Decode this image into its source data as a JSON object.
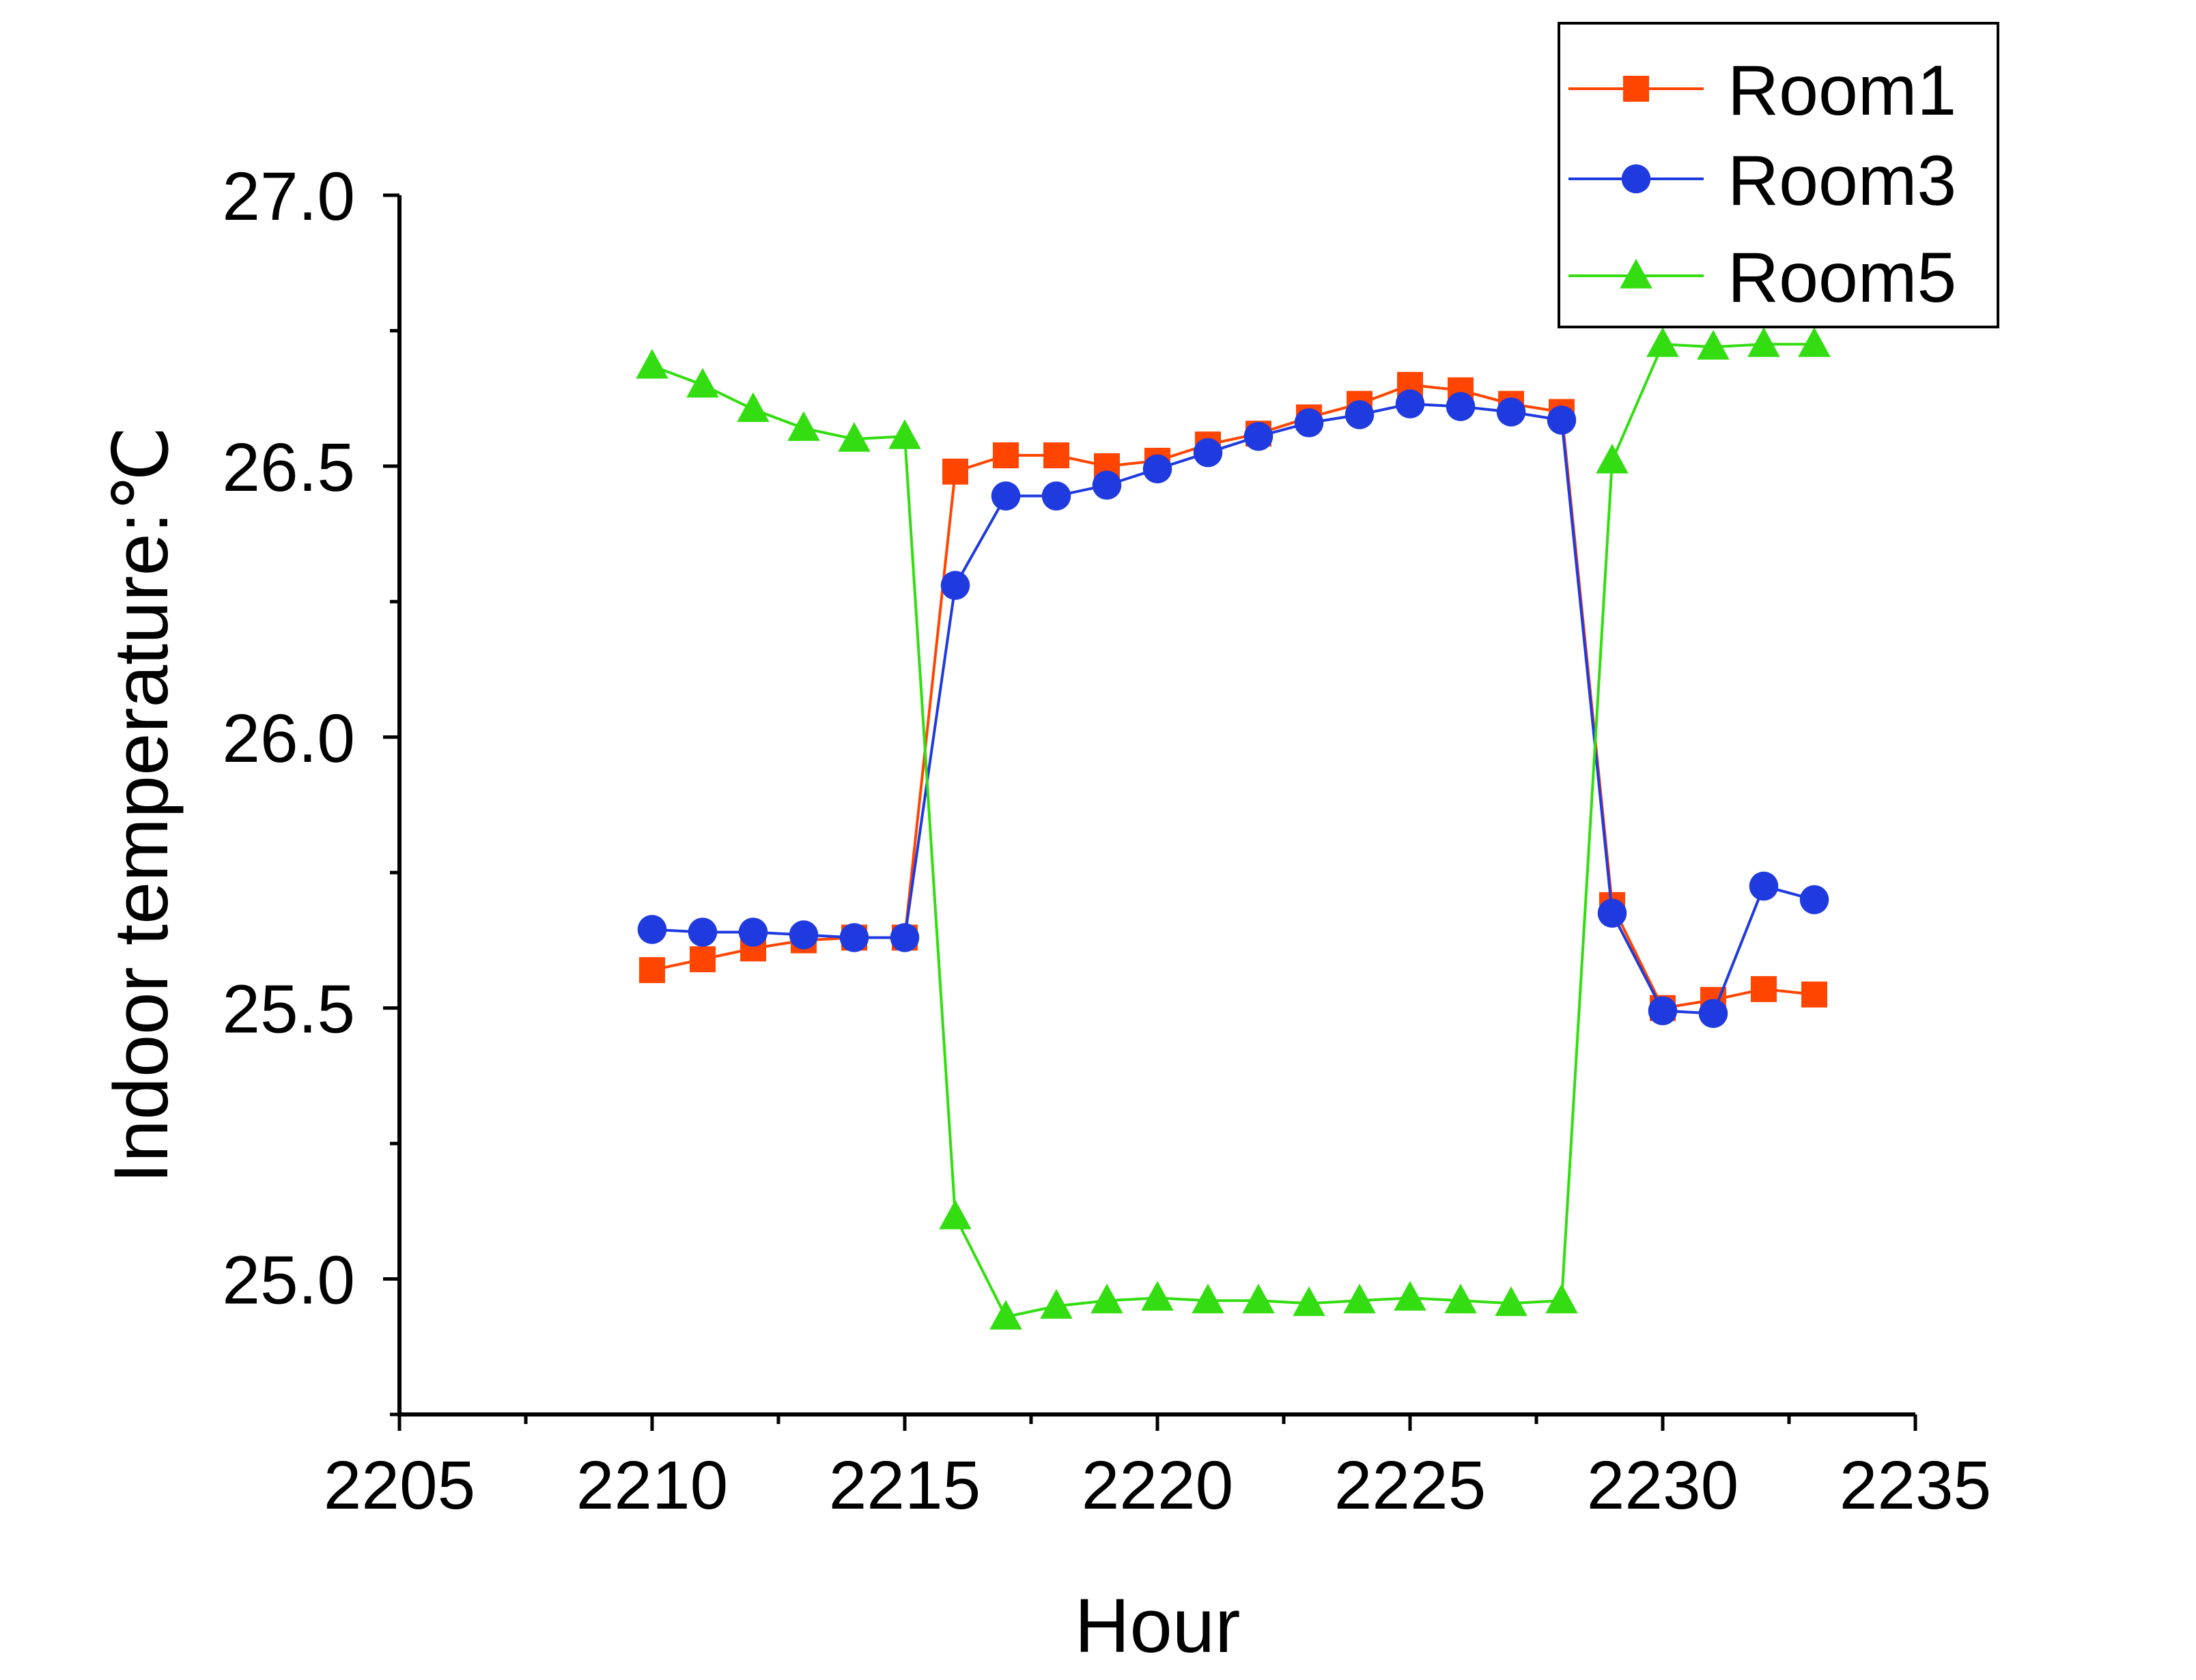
{
  "chart_data": {
    "type": "line",
    "title": "",
    "xlabel": "Hour",
    "ylabel": "Indoor temperature:℃",
    "xlim": [
      2205,
      2235
    ],
    "ylim": [
      24.75,
      27.0
    ],
    "xticks": [
      2205,
      2210,
      2215,
      2220,
      2225,
      2230,
      2235
    ],
    "yticks": [
      25.0,
      25.5,
      26.0,
      26.5,
      27.0
    ],
    "xtick_labels": [
      "2205",
      "2210",
      "2215",
      "2220",
      "2225",
      "2230",
      "2235"
    ],
    "ytick_labels": [
      "25.0",
      "25.5",
      "26.0",
      "26.5",
      "27.0"
    ],
    "grid": false,
    "legend_position": "top-right",
    "x": [
      2210,
      2211,
      2212,
      2213,
      2214,
      2215,
      2216,
      2217,
      2218,
      2219,
      2220,
      2221,
      2222,
      2223,
      2224,
      2225,
      2226,
      2227,
      2228,
      2229,
      2230,
      2231,
      2232,
      2233
    ],
    "series": [
      {
        "name": "Room1",
        "color": "#ff4500",
        "marker": "square",
        "values": [
          25.57,
          25.59,
          25.61,
          25.625,
          25.63,
          25.63,
          26.49,
          26.52,
          26.52,
          26.5,
          26.51,
          26.54,
          26.56,
          26.59,
          26.615,
          26.65,
          26.64,
          26.615,
          26.6,
          25.69,
          25.5,
          25.515,
          25.535,
          25.525
        ]
      },
      {
        "name": "Room3",
        "color": "#1f3adf",
        "marker": "circle",
        "values": [
          25.645,
          25.64,
          25.64,
          25.635,
          25.63,
          25.63,
          26.28,
          26.445,
          26.445,
          26.465,
          26.495,
          26.525,
          26.555,
          26.58,
          26.595,
          26.615,
          26.61,
          26.6,
          26.585,
          25.675,
          25.495,
          25.49,
          25.725,
          25.7
        ]
      },
      {
        "name": "Room5",
        "color": "#33dd11",
        "marker": "triangle",
        "values": [
          26.685,
          26.65,
          26.605,
          26.57,
          26.55,
          26.555,
          25.115,
          24.93,
          24.95,
          24.96,
          24.965,
          24.96,
          24.96,
          24.955,
          24.96,
          24.965,
          24.96,
          24.955,
          24.96,
          26.51,
          26.725,
          26.72,
          26.725,
          26.725
        ]
      }
    ]
  }
}
